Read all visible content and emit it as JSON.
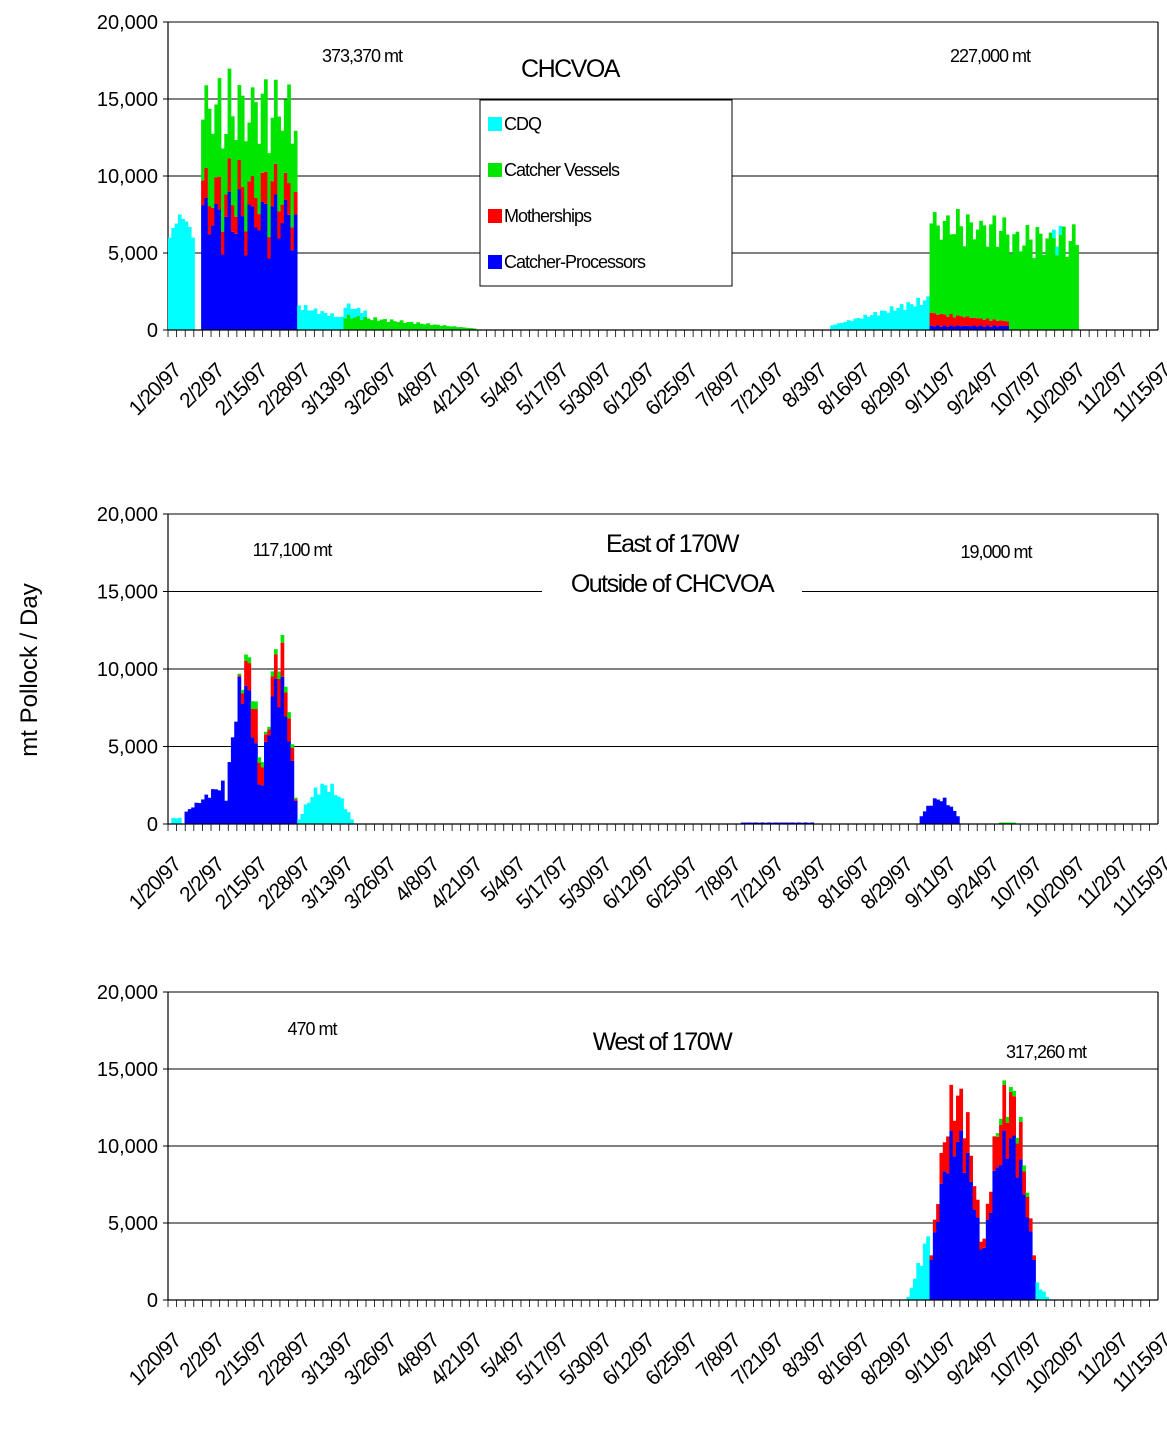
{
  "figure": {
    "ylabel": "mt Pollock / Day",
    "colors": {
      "CDQ": "#00ffff",
      "Catcher Vessels": "#00e600",
      "Motherships": "#ff0000",
      "Catcher-Processors": "#0000ff",
      "grid": "#000000",
      "background": "#ffffff"
    }
  },
  "chart_data": [
    {
      "type": "bar",
      "stacked": true,
      "title": "CHCVOA",
      "subtitle": "",
      "annotations": [
        "373,370 mt",
        "227,000 mt"
      ],
      "xlabel": "",
      "ylabel": "",
      "ylim": [
        0,
        20000
      ],
      "yticks": [
        "0",
        "5,000",
        "10,000",
        "15,000",
        "20,000"
      ],
      "ytick_values": [
        0,
        5000,
        10000,
        15000,
        20000
      ],
      "grid": true,
      "legend": {
        "placement": "top-center",
        "entries": [
          "CDQ",
          "Catcher Vessels",
          "Motherships",
          "Catcher-Processors"
        ]
      },
      "xticks": [
        "1/20/97",
        "2/2/97",
        "2/15/97",
        "2/28/97",
        "3/13/97",
        "3/26/97",
        "4/8/97",
        "4/21/97",
        "5/4/97",
        "5/17/97",
        "5/30/97",
        "6/12/97",
        "6/25/97",
        "7/8/97",
        "7/21/97",
        "8/3/97",
        "8/16/97",
        "8/29/97",
        "9/11/97",
        "9/24/97",
        "10/7/97",
        "10/20/97",
        "11/2/97",
        "11/15/97"
      ],
      "series_order": [
        "Catcher-Processors",
        "Motherships",
        "Catcher Vessels",
        "CDQ"
      ],
      "segments": [
        {
          "series": "CDQ",
          "start": "1/20/97",
          "end": "1/27/97",
          "peak": 7500,
          "low": 6000,
          "profile": "hump"
        },
        {
          "series": "Catcher Vessels",
          "start": "1/20/97",
          "end": "1/27/97",
          "base": "stack",
          "peak": 0,
          "low": 0,
          "profile": "flat"
        },
        {
          "series": "Catcher-Processors",
          "start": "1/30/97",
          "end": "2/27/97",
          "peak": 9300,
          "low": 1500,
          "profile": "wave"
        },
        {
          "series": "Motherships",
          "start": "1/30/97",
          "end": "2/27/97",
          "peak": 2200,
          "low": 300,
          "profile": "wave"
        },
        {
          "series": "Catcher Vessels",
          "start": "1/30/97",
          "end": "2/27/97",
          "peak": 6500,
          "low": 2000,
          "profile": "wave"
        },
        {
          "series": "CDQ",
          "start": "2/28/97",
          "end": "3/20/97",
          "peak": 1700,
          "low": 400,
          "profile": "decay"
        },
        {
          "series": "Catcher Vessels",
          "start": "3/14/97",
          "end": "4/22/97",
          "peak": 1000,
          "low": 100,
          "profile": "decay"
        },
        {
          "series": "CDQ",
          "start": "8/8/97",
          "end": "9/6/97",
          "peak": 2200,
          "low": 300,
          "profile": "ramp"
        },
        {
          "series": "Catcher-Processors",
          "start": "9/7/97",
          "end": "9/30/97",
          "peak": 300,
          "low": 50,
          "profile": "flat"
        },
        {
          "series": "Motherships",
          "start": "9/7/97",
          "end": "9/30/97",
          "peak": 900,
          "low": 300,
          "profile": "decay"
        },
        {
          "series": "Catcher Vessels",
          "start": "9/7/97",
          "end": "10/21/97",
          "peak": 7000,
          "low": 2500,
          "profile": "wave"
        },
        {
          "series": "CDQ",
          "start": "10/14/97",
          "end": "10/16/97",
          "peak": 600,
          "low": 300,
          "profile": "flat"
        }
      ]
    },
    {
      "type": "bar",
      "stacked": true,
      "title": "East of 170W",
      "subtitle": "Outside of CHCVOA",
      "annotations": [
        "117,100 mt",
        "19,000 mt"
      ],
      "xlabel": "",
      "ylabel": "",
      "ylim": [
        0,
        20000
      ],
      "yticks": [
        "0",
        "5,000",
        "10,000",
        "15,000",
        "20,000"
      ],
      "ytick_values": [
        0,
        5000,
        10000,
        15000,
        20000
      ],
      "grid": true,
      "xticks": [
        "1/20/97",
        "2/2/97",
        "2/15/97",
        "2/28/97",
        "3/13/97",
        "3/26/97",
        "4/8/97",
        "4/21/97",
        "5/4/97",
        "5/17/97",
        "5/30/97",
        "6/12/97",
        "6/25/97",
        "7/8/97",
        "7/21/97",
        "8/3/97",
        "8/16/97",
        "8/29/97",
        "9/11/97",
        "9/24/97",
        "10/7/97",
        "10/20/97",
        "11/2/97",
        "11/15/97"
      ],
      "series_order": [
        "Catcher-Processors",
        "Motherships",
        "Catcher Vessels",
        "CDQ"
      ],
      "segments": [
        {
          "series": "CDQ",
          "start": "1/21/97",
          "end": "1/23/97",
          "peak": 400,
          "low": 300,
          "profile": "flat"
        },
        {
          "series": "Catcher-Processors",
          "start": "1/25/97",
          "end": "2/5/97",
          "peak": 2800,
          "low": 800,
          "profile": "ramp"
        },
        {
          "series": "Catcher-Processors",
          "start": "2/6/97",
          "end": "2/27/97",
          "peak": 9500,
          "low": 1500,
          "profile": "double"
        },
        {
          "series": "Motherships",
          "start": "2/10/97",
          "end": "2/27/97",
          "peak": 2200,
          "low": 100,
          "profile": "double"
        },
        {
          "series": "Catcher Vessels",
          "start": "2/10/97",
          "end": "2/27/97",
          "peak": 500,
          "low": 100,
          "profile": "double"
        },
        {
          "series": "CDQ",
          "start": "2/28/97",
          "end": "3/16/97",
          "peak": 2600,
          "low": 300,
          "profile": "hump"
        },
        {
          "series": "Catcher-Processors",
          "start": "7/12/97",
          "end": "8/2/97",
          "peak": 100,
          "low": 50,
          "profile": "flat"
        },
        {
          "series": "Catcher-Processors",
          "start": "9/4/97",
          "end": "9/15/97",
          "peak": 1700,
          "low": 500,
          "profile": "hump"
        },
        {
          "series": "Catcher Vessels",
          "start": "9/28/97",
          "end": "10/2/97",
          "peak": 100,
          "low": 50,
          "profile": "flat"
        }
      ]
    },
    {
      "type": "bar",
      "stacked": true,
      "title": "West of 170W",
      "subtitle": "",
      "annotations": [
        "470 mt",
        "317,260 mt"
      ],
      "xlabel": "",
      "ylabel": "",
      "ylim": [
        0,
        20000
      ],
      "yticks": [
        "0",
        "5,000",
        "10,000",
        "15,000",
        "20,000"
      ],
      "ytick_values": [
        0,
        5000,
        10000,
        15000,
        20000
      ],
      "grid": true,
      "xticks": [
        "1/20/97",
        "2/2/97",
        "2/15/97",
        "2/28/97",
        "3/13/97",
        "3/26/97",
        "4/8/97",
        "4/21/97",
        "5/4/97",
        "5/17/97",
        "5/30/97",
        "6/12/97",
        "6/25/97",
        "7/8/97",
        "7/21/97",
        "8/3/97",
        "8/16/97",
        "8/29/97",
        "9/11/97",
        "9/24/97",
        "10/7/97",
        "10/20/97",
        "11/2/97",
        "11/15/97"
      ],
      "series_order": [
        "Catcher-Processors",
        "Motherships",
        "Catcher Vessels",
        "CDQ"
      ],
      "segments": [
        {
          "series": "CDQ",
          "start": "8/31/97",
          "end": "9/6/97",
          "peak": 4500,
          "low": 200,
          "profile": "ramp"
        },
        {
          "series": "Catcher-Processors",
          "start": "9/7/97",
          "end": "10/8/97",
          "peak": 11000,
          "low": 2600,
          "profile": "double"
        },
        {
          "series": "Motherships",
          "start": "9/7/97",
          "end": "10/8/97",
          "peak": 3000,
          "low": 300,
          "profile": "double"
        },
        {
          "series": "Catcher Vessels",
          "start": "9/27/97",
          "end": "10/6/97",
          "peak": 400,
          "low": 0,
          "profile": "flat"
        },
        {
          "series": "CDQ",
          "start": "10/9/97",
          "end": "10/12/97",
          "peak": 1200,
          "low": 200,
          "profile": "decay"
        }
      ]
    }
  ]
}
